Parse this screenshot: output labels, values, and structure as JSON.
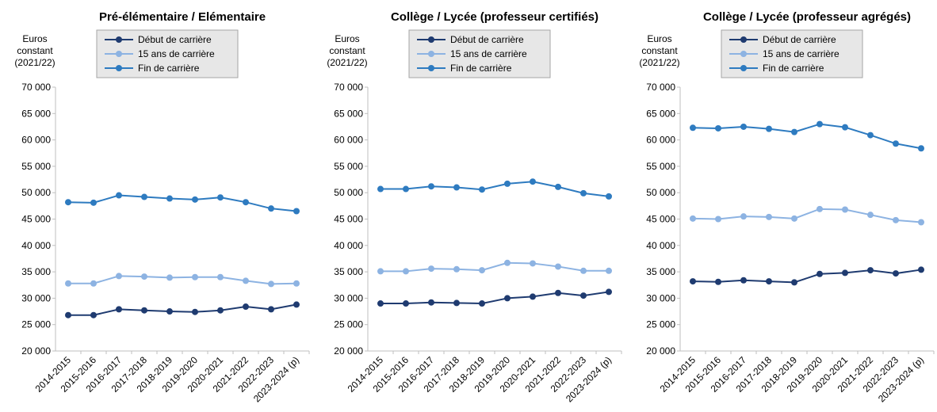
{
  "chart_data": [
    {
      "type": "line",
      "title": "Pré-élémentaire / Elémentaire",
      "y_label": "Euros constant (2021/22)",
      "categories": [
        "2014-2015",
        "2015-2016",
        "2016-2017",
        "2017-2018",
        "2018-2019",
        "2019-2020",
        "2020-2021",
        "2021-2022",
        "2022-2023",
        "2023-2024 (p)"
      ],
      "series": [
        {
          "name": "Début de carrière",
          "color": "#1f3b70",
          "values": [
            26800,
            26800,
            27900,
            27700,
            27500,
            27400,
            27700,
            28400,
            27900,
            28800
          ]
        },
        {
          "name": "15 ans de carrière",
          "color": "#8db3e2",
          "values": [
            32800,
            32800,
            34200,
            34100,
            33900,
            34000,
            34000,
            33300,
            32700,
            32800
          ]
        },
        {
          "name": "Fin de carrière",
          "color": "#2e7bc0",
          "values": [
            48200,
            48100,
            49500,
            49200,
            48900,
            48700,
            49100,
            48200,
            47000,
            46500
          ]
        }
      ],
      "ylim": [
        20000,
        70000
      ],
      "yticks": [
        {
          "value": 20000,
          "label": "20 000"
        },
        {
          "value": 25000,
          "label": "25 000"
        },
        {
          "value": 30000,
          "label": "30 000"
        },
        {
          "value": 35000,
          "label": "35 000"
        },
        {
          "value": 40000,
          "label": "40 000"
        },
        {
          "value": 45000,
          "label": "45 000"
        },
        {
          "value": 50000,
          "label": "50 000"
        },
        {
          "value": 55000,
          "label": "55 000"
        },
        {
          "value": 60000,
          "label": "60 000"
        },
        {
          "value": 65000,
          "label": "65 000"
        },
        {
          "value": 70000,
          "label": "70 000"
        }
      ],
      "grid": false
    },
    {
      "type": "line",
      "title": "Collège / Lycée (professeur certifiés)",
      "y_label": "Euros constant (2021/22)",
      "categories": [
        "2014-2015",
        "2015-2016",
        "2016-2017",
        "2017-2018",
        "2018-2019",
        "2019-2020",
        "2020-2021",
        "2021-2022",
        "2022-2023",
        "2023-2024 (p)"
      ],
      "series": [
        {
          "name": "Début de carrière",
          "color": "#1f3b70",
          "values": [
            29000,
            29000,
            29200,
            29100,
            29000,
            30000,
            30300,
            31000,
            30500,
            31200
          ]
        },
        {
          "name": "15 ans de carrière",
          "color": "#8db3e2",
          "values": [
            35100,
            35100,
            35600,
            35500,
            35300,
            36700,
            36600,
            36000,
            35200,
            35200
          ]
        },
        {
          "name": "Fin de carrière",
          "color": "#2e7bc0",
          "values": [
            50700,
            50700,
            51200,
            51000,
            50600,
            51700,
            52100,
            51100,
            49900,
            49300
          ]
        }
      ],
      "ylim": [
        20000,
        70000
      ],
      "yticks": [
        {
          "value": 20000,
          "label": "20 000"
        },
        {
          "value": 25000,
          "label": "25 000"
        },
        {
          "value": 30000,
          "label": "30 000"
        },
        {
          "value": 35000,
          "label": "35 000"
        },
        {
          "value": 40000,
          "label": "40 000"
        },
        {
          "value": 45000,
          "label": "45 000"
        },
        {
          "value": 50000,
          "label": "50 000"
        },
        {
          "value": 55000,
          "label": "55 000"
        },
        {
          "value": 60000,
          "label": "60 000"
        },
        {
          "value": 65000,
          "label": "65 000"
        },
        {
          "value": 70000,
          "label": "70 000"
        }
      ],
      "grid": false
    },
    {
      "type": "line",
      "title": "Collège / Lycée (professeur agrégés)",
      "y_label": "Euros constant (2021/22)",
      "categories": [
        "2014-2015",
        "2015-2016",
        "2016-2017",
        "2017-2018",
        "2018-2019",
        "2019-2020",
        "2020-2021",
        "2021-2022",
        "2022-2023",
        "2023-2024 (p)"
      ],
      "series": [
        {
          "name": "Début de carrière",
          "color": "#1f3b70",
          "values": [
            33200,
            33100,
            33400,
            33200,
            33000,
            34600,
            34800,
            35300,
            34700,
            35400
          ]
        },
        {
          "name": "15 ans de carrière",
          "color": "#8db3e2",
          "values": [
            45100,
            45000,
            45500,
            45400,
            45100,
            46900,
            46800,
            45800,
            44800,
            44400
          ]
        },
        {
          "name": "Fin de carrière",
          "color": "#2e7bc0",
          "values": [
            62300,
            62200,
            62500,
            62100,
            61500,
            63000,
            62400,
            60900,
            59300,
            58400
          ]
        }
      ],
      "ylim": [
        20000,
        70000
      ],
      "yticks": [
        {
          "value": 20000,
          "label": "20 000"
        },
        {
          "value": 25000,
          "label": "25 000"
        },
        {
          "value": 30000,
          "label": "30 000"
        },
        {
          "value": 35000,
          "label": "35 000"
        },
        {
          "value": 40000,
          "label": "40 000"
        },
        {
          "value": 45000,
          "label": "45 000"
        },
        {
          "value": 50000,
          "label": "50 000"
        },
        {
          "value": 55000,
          "label": "55 000"
        },
        {
          "value": 60000,
          "label": "60 000"
        },
        {
          "value": 65000,
          "label": "65 000"
        },
        {
          "value": 70000,
          "label": "70 000"
        }
      ],
      "grid": false
    }
  ]
}
